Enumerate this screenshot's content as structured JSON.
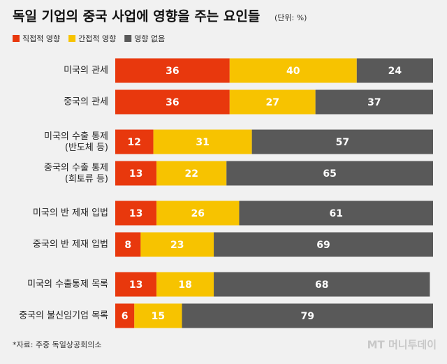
{
  "chart_data": {
    "type": "stacked_barh",
    "title": "독일 기업의 중국 사업에 영향을 주는 요인들",
    "subtitle": "(단위: %)",
    "categories": [
      "미국의 관세",
      "중국의 관세",
      "미국의 수출 통제\n(반도체 등)",
      "중국의 수출 통제\n(희토류 등)",
      "미국의 반 제재 입법",
      "중국의 반 제재 입법",
      "미국의 수출통제 목록",
      "중국의 불신임기업 목록"
    ],
    "series": [
      {
        "name": "직접적 영향",
        "color": "#e8380d",
        "values": [
          36,
          36,
          12,
          13,
          13,
          8,
          13,
          6
        ]
      },
      {
        "name": "간접적 영향",
        "color": "#f7c300",
        "values": [
          40,
          27,
          31,
          22,
          26,
          23,
          18,
          15
        ]
      },
      {
        "name": "영향 없음",
        "color": "#595959",
        "values": [
          24,
          37,
          57,
          65,
          61,
          69,
          68,
          79
        ]
      }
    ],
    "xlim": [
      0,
      100
    ],
    "source": "*자료: 주중 독일상공회의소",
    "watermark": "MT 머니투데이"
  }
}
